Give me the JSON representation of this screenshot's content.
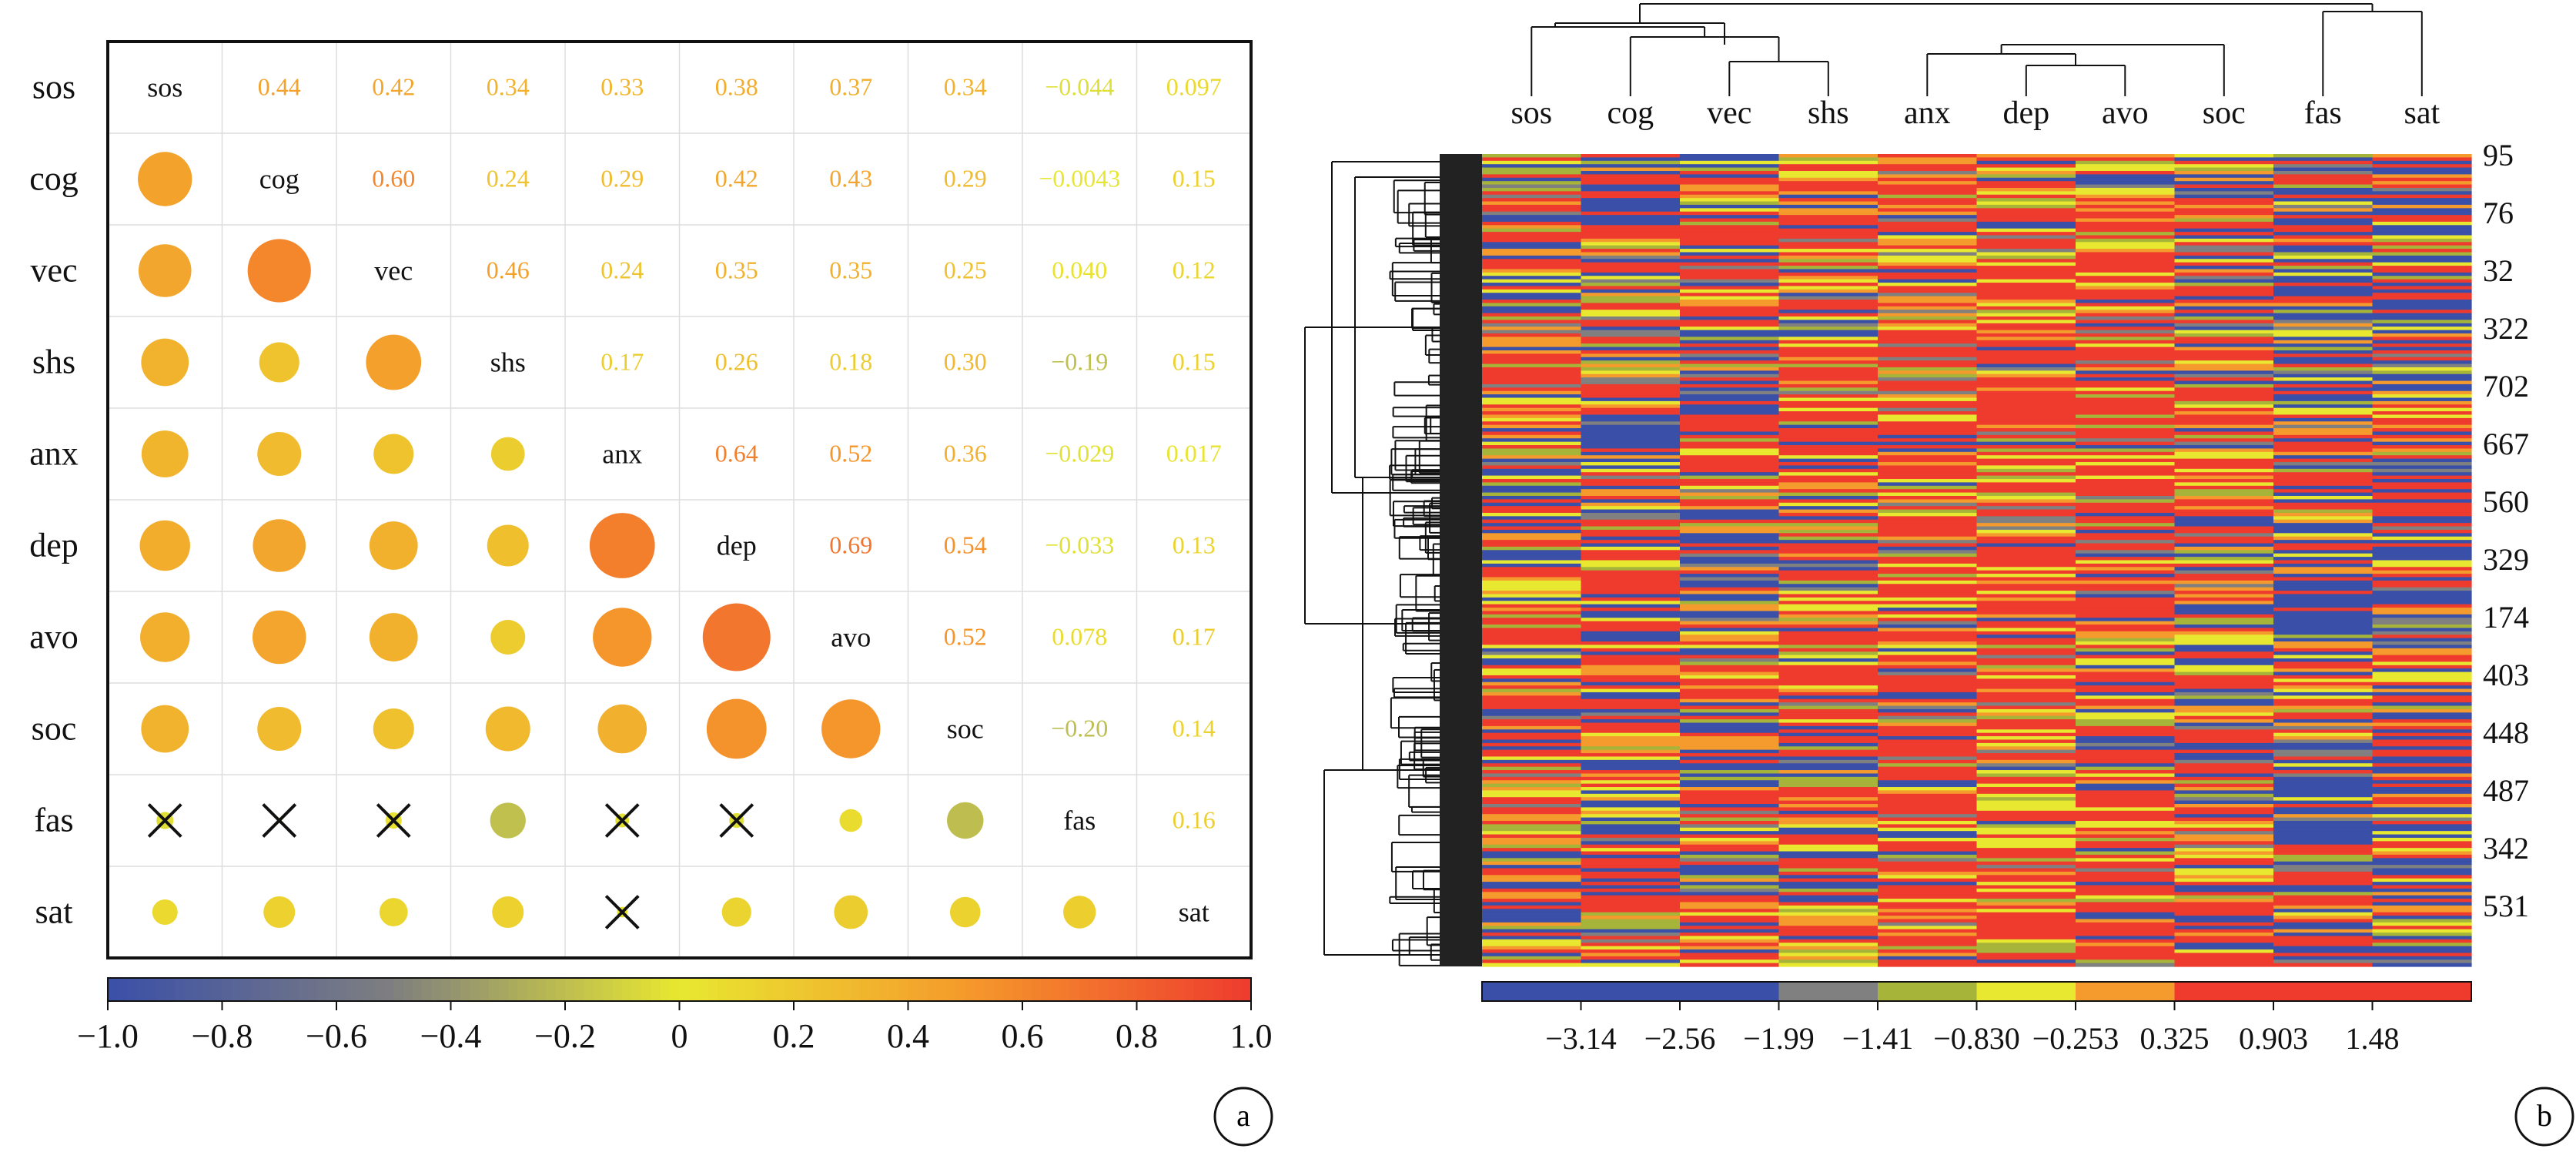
{
  "chart_data": [
    {
      "panel": "a",
      "type": "heatmap",
      "subtype": "correlation-matrix",
      "variables": [
        "sos",
        "cog",
        "vec",
        "shs",
        "anx",
        "dep",
        "avo",
        "soc",
        "fas",
        "sat"
      ],
      "upper_triangle": "numbers",
      "lower_triangle": "circles",
      "nonsignificant_marker": "cross",
      "matrix": [
        [
          1,
          0.44,
          0.42,
          0.34,
          0.33,
          0.38,
          0.37,
          0.34,
          -0.044,
          0.097
        ],
        [
          0.44,
          1,
          0.6,
          0.24,
          0.29,
          0.42,
          0.43,
          0.29,
          -0.0043,
          0.15
        ],
        [
          0.42,
          0.6,
          1,
          0.46,
          0.24,
          0.35,
          0.35,
          0.25,
          0.04,
          0.12
        ],
        [
          0.34,
          0.24,
          0.46,
          1,
          0.17,
          0.26,
          0.18,
          0.3,
          -0.19,
          0.15
        ],
        [
          0.33,
          0.29,
          0.24,
          0.17,
          1,
          0.64,
          0.52,
          0.36,
          -0.029,
          0.017
        ],
        [
          0.38,
          0.42,
          0.35,
          0.26,
          0.64,
          1,
          0.69,
          0.54,
          -0.033,
          0.13
        ],
        [
          0.37,
          0.43,
          0.35,
          0.18,
          0.52,
          0.69,
          1,
          0.52,
          0.078,
          0.17
        ],
        [
          0.34,
          0.29,
          0.25,
          0.3,
          0.36,
          0.54,
          0.52,
          1,
          -0.2,
          0.14
        ],
        [
          -0.044,
          -0.0043,
          0.04,
          -0.19,
          -0.029,
          -0.033,
          0.078,
          -0.2,
          1,
          0.16
        ],
        [
          0.097,
          0.15,
          0.12,
          0.15,
          0.017,
          0.13,
          0.17,
          0.14,
          0.16,
          1
        ]
      ],
      "upper_labels": [
        [
          "",
          "0.44",
          "0.42",
          "0.34",
          "0.33",
          "0.38",
          "0.37",
          "0.34",
          "−0.044",
          "0.097"
        ],
        [
          "",
          "",
          "0.60",
          "0.24",
          "0.29",
          "0.42",
          "0.43",
          "0.29",
          "−0.0043",
          "0.15"
        ],
        [
          "",
          "",
          "",
          "0.46",
          "0.24",
          "0.35",
          "0.35",
          "0.25",
          "0.040",
          "0.12"
        ],
        [
          "",
          "",
          "",
          "",
          "0.17",
          "0.26",
          "0.18",
          "0.30",
          "−0.19",
          "0.15"
        ],
        [
          "",
          "",
          "",
          "",
          "",
          "0.64",
          "0.52",
          "0.36",
          "−0.029",
          "0.017"
        ],
        [
          "",
          "",
          "",
          "",
          "",
          "",
          "0.69",
          "0.54",
          "−0.033",
          "0.13"
        ],
        [
          "",
          "",
          "",
          "",
          "",
          "",
          "",
          "0.52",
          "0.078",
          "0.17"
        ],
        [
          "",
          "",
          "",
          "",
          "",
          "",
          "",
          "",
          "−0.20",
          "0.14"
        ],
        [
          "",
          "",
          "",
          "",
          "",
          "",
          "",
          "",
          "",
          "0.16"
        ],
        [
          "",
          "",
          "",
          "",
          "",
          "",
          "",
          "",
          "",
          ""
        ]
      ],
      "crossed_cells": [
        [
          8,
          0
        ],
        [
          8,
          1
        ],
        [
          8,
          2
        ],
        [
          8,
          4
        ],
        [
          8,
          5
        ],
        [
          9,
          4
        ]
      ],
      "colorbar": {
        "range": [
          -1.0,
          1.0
        ],
        "tick_values": [
          -1.0,
          -0.8,
          -0.6,
          -0.4,
          -0.2,
          0,
          0.2,
          0.4,
          0.6,
          0.8,
          1.0
        ],
        "tick_labels": [
          "−1.0",
          "−0.8",
          "−0.6",
          "−0.4",
          "−0.2",
          "0",
          "0.2",
          "0.4",
          "0.6",
          "0.8",
          "1.0"
        ],
        "colors": [
          "#3a4fa8",
          "#7f7f7f",
          "#e8e830",
          "#f59a2c",
          "#ee3b2e"
        ]
      }
    },
    {
      "panel": "b",
      "type": "heatmap",
      "subtype": "clustered-heatmap-with-dendrograms",
      "columns": [
        "sos",
        "cog",
        "vec",
        "shs",
        "anx",
        "dep",
        "avo",
        "soc",
        "fas",
        "sat"
      ],
      "row_labels_shown": [
        "95",
        "76",
        "32",
        "322",
        "702",
        "667",
        "560",
        "329",
        "174",
        "403",
        "448",
        "487",
        "342",
        "531"
      ],
      "colorbar": {
        "tick_labels": [
          "−3.14",
          "−2.56",
          "−1.99",
          "−1.41",
          "−0.830",
          "−0.253",
          "0.325",
          "0.903",
          "1.48"
        ],
        "segment_colors": [
          "#3a4fa8",
          "#3a4fa8",
          "#3a4fa8",
          "#808080",
          "#a6b43a",
          "#e8e830",
          "#f59a2c",
          "#ee3b2e",
          "#ee3b2e",
          "#ee3b2e"
        ]
      },
      "column_tendency": [
        0.55,
        0.5,
        0.55,
        0.62,
        0.72,
        0.8,
        0.72,
        0.58,
        0.35,
        0.45
      ]
    }
  ],
  "panel_labels": {
    "a": "a",
    "b": "b"
  }
}
